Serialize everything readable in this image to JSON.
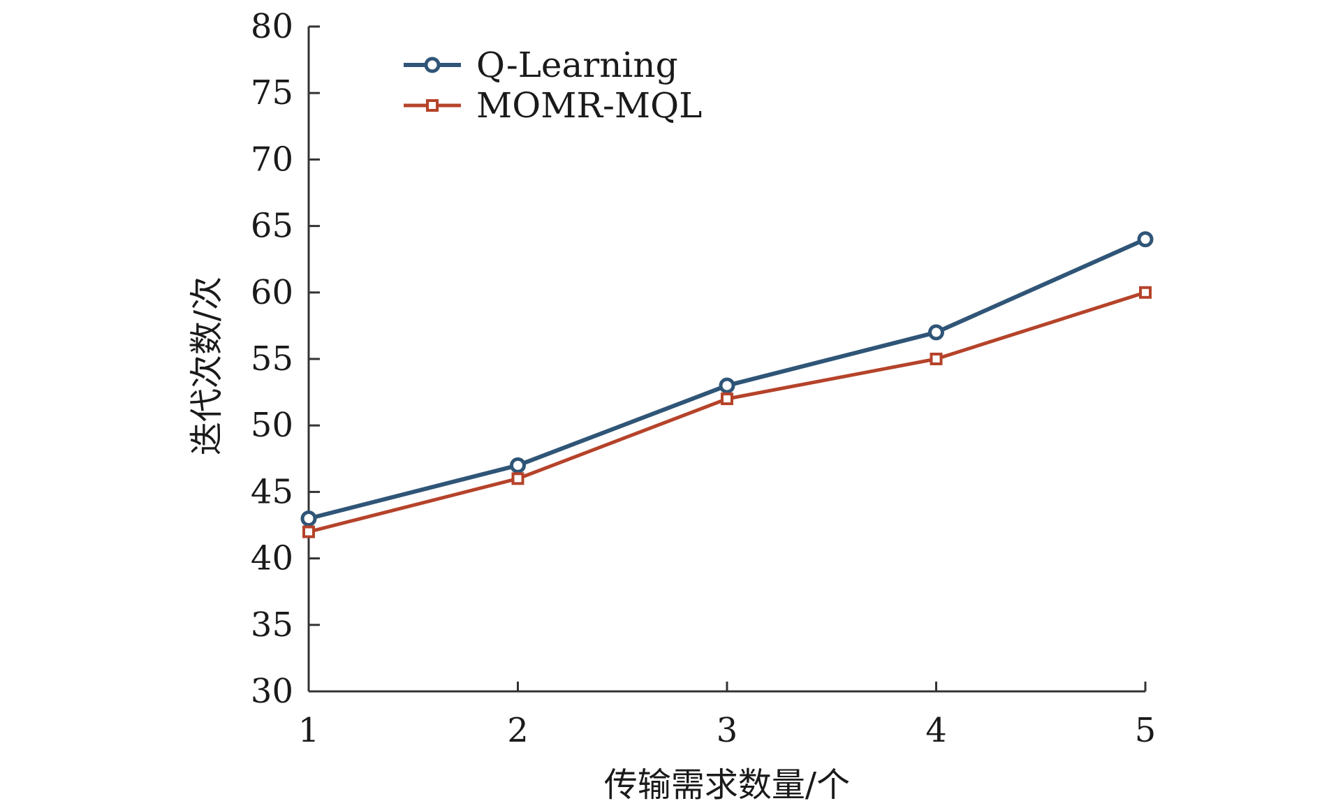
{
  "chart_data": {
    "type": "line",
    "title": "",
    "xlabel": "传输需求数量/个",
    "ylabel": "迭代次数/次",
    "x": [
      1,
      2,
      3,
      4,
      5
    ],
    "x_tick_labels": [
      "1",
      "2",
      "3",
      "4",
      "5"
    ],
    "y_ticks": [
      30,
      35,
      40,
      45,
      50,
      55,
      60,
      65,
      70,
      75,
      80
    ],
    "y_tick_labels": [
      "30",
      "35",
      "40",
      "45",
      "50",
      "55",
      "60",
      "65",
      "70",
      "75",
      "80"
    ],
    "xlim": [
      1,
      5
    ],
    "ylim": [
      30,
      80
    ],
    "grid": false,
    "legend_position": "top-left",
    "series": [
      {
        "name": "Q-Learning",
        "values": [
          43,
          47,
          53,
          57,
          64
        ],
        "color": "#2f5577",
        "marker": "circle"
      },
      {
        "name": "MOMR-MQL",
        "values": [
          42,
          46,
          52,
          55,
          60
        ],
        "color": "#b5432a",
        "marker": "square"
      }
    ]
  }
}
